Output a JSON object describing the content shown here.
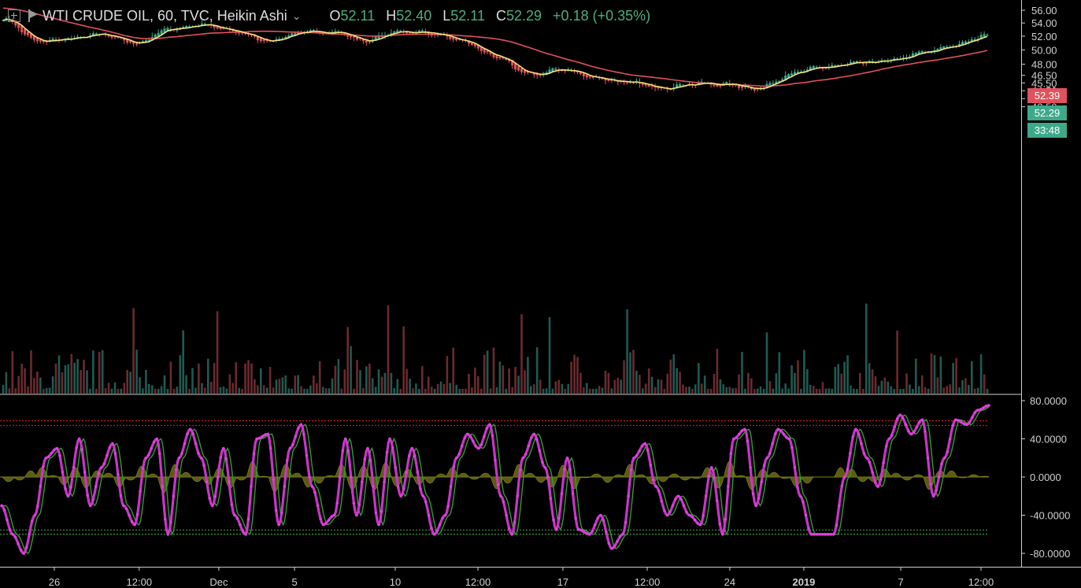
{
  "header": {
    "symbol": "WTI CRUDE OIL, 60, TVC, Heikin Ashi",
    "chevron": "⌄",
    "o_label": "O",
    "o_value": "52.11",
    "h_label": "H",
    "h_value": "52.40",
    "l_label": "L",
    "l_value": "52.11",
    "c_label": "C",
    "c_value": "52.29",
    "change": "+0.18 (+0.35%)"
  },
  "price_tags": {
    "high": "52.39",
    "last": "52.29",
    "countdown": "33:48"
  },
  "colors": {
    "background": "#000000",
    "up": "#3ea98a",
    "down": "#e0525e",
    "ma_fast": "#f3e37c",
    "ma_slow": "#e0525e",
    "osc": "#cc33cc",
    "signal": "#2f9e2f",
    "histogram": "#6b6b14",
    "upper_band": "#c21a1a",
    "lower_band": "#3e9a3e",
    "tag_red": "#e0525e",
    "tag_green": "#3ea98a"
  },
  "chart_data": [
    {
      "type": "candlestick",
      "style": "Heikin Ashi",
      "interval": "60",
      "price_axis": {
        "ticks": [
          "56.00",
          "54.00",
          "52.00",
          "50.00",
          "48.00",
          "46.50",
          "45.50",
          "44.50",
          "43.50",
          "42.50"
        ],
        "scale": "log",
        "ylim": [
          41.8,
          56.6
        ]
      },
      "time_axis": {
        "ticks": [
          "26",
          "12:00",
          "Dec",
          "5",
          "10",
          "12:00",
          "17",
          "12:00",
          "24",
          "2019",
          "7",
          "12:00"
        ]
      },
      "close_path": {
        "x": [
          "Nov 23 12:00",
          "Nov 26",
          "Nov 27",
          "Nov 28",
          "Nov 29",
          "Dec 3",
          "Dec 4",
          "Dec 5",
          "Dec 6",
          "Dec 7",
          "Dec 10",
          "Dec 11",
          "Dec 13",
          "Dec 14",
          "Dec 17",
          "Dec 18",
          "Dec 19",
          "Dec 20",
          "Dec 21",
          "Dec 24",
          "Dec 26",
          "Dec 27",
          "Dec 28",
          "Jan 2",
          "Jan 3",
          "Jan 4",
          "Jan 7",
          "Jan 8",
          "Jan 9",
          "Jan 10",
          "Jan 11 12:00"
        ],
        "close": [
          54.6,
          51.2,
          51.6,
          52.3,
          50.9,
          53.1,
          53.7,
          52.7,
          51.3,
          52.5,
          52.7,
          51.3,
          52.7,
          52.5,
          51.1,
          49.0,
          46.5,
          47.3,
          46.2,
          45.5,
          44.9,
          45.4,
          45.3,
          44.8,
          46.8,
          47.6,
          48.1,
          48.5,
          49.6,
          50.7,
          52.29
        ]
      },
      "moving_averages": [
        {
          "type": "fast",
          "color": "#f3e37c"
        },
        {
          "type": "slow",
          "color": "#e0525e"
        }
      ],
      "volume": {
        "shown": true
      }
    },
    {
      "type": "line",
      "panel": "oscillator",
      "ticks": [
        "80.0000",
        "40.0000",
        "0.0000",
        "-40.0000",
        "-80.0000"
      ],
      "ylim": [
        -90,
        88
      ],
      "upper_band": 55,
      "lower_band": -55,
      "series": [
        {
          "values": [
            -30,
            -60,
            -80,
            -40,
            20,
            30,
            -20,
            40,
            -30,
            10,
            35,
            -30,
            -50,
            20,
            40,
            -60,
            20,
            50,
            20,
            -30,
            30,
            -40,
            -60,
            40,
            45,
            -50,
            30,
            55,
            -10,
            -50,
            -40,
            40,
            -40,
            30,
            -50,
            40,
            -20,
            30,
            -20,
            -60,
            -40,
            20,
            45,
            30,
            55,
            -20,
            -60,
            20,
            45,
            10,
            -55,
            20,
            -55,
            -60,
            -40,
            -75,
            -60,
            20,
            35,
            -10,
            -40,
            -20,
            -40,
            -50,
            10,
            -60,
            40,
            50,
            -30,
            20,
            50,
            40,
            -20,
            -60,
            -60,
            -60,
            0,
            50,
            20,
            -10,
            40,
            65,
            45,
            60,
            -20,
            20,
            60,
            55,
            70,
            75
          ]
        }
      ]
    }
  ]
}
